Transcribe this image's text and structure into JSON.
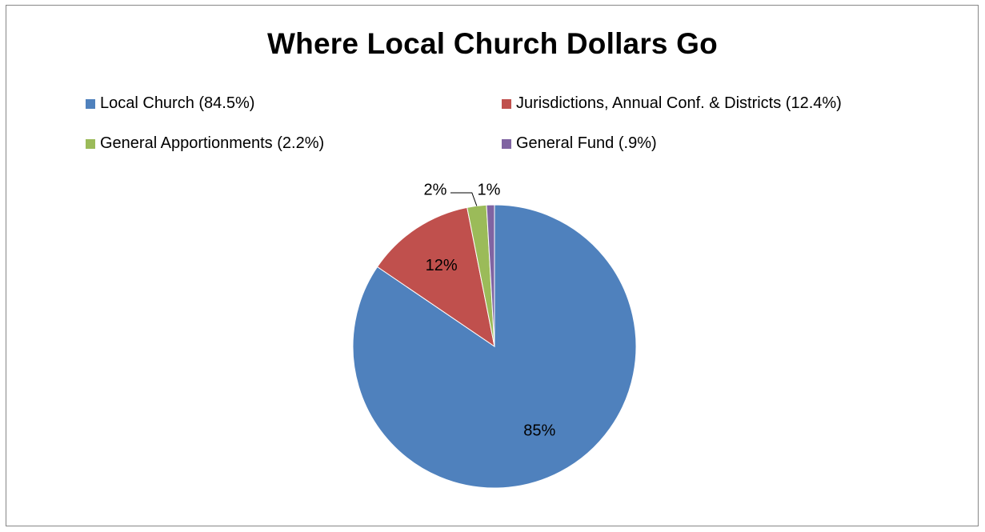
{
  "chart_data": {
    "type": "pie",
    "title": "Where Local Church Dollars Go",
    "categories": [
      "Local Church (84.5%)",
      "Jurisdictions, Annual Conf. & Districts (12.4%)",
      "General Apportionments (2.2%)",
      "General Fund (.9%)"
    ],
    "values": [
      84.5,
      12.4,
      2.2,
      0.9
    ],
    "data_labels": [
      "85%",
      "12%",
      "2%",
      "1%"
    ],
    "colors": [
      "#4f81bd",
      "#c0504d",
      "#9bbb59",
      "#8064a2"
    ],
    "legend_position": "top",
    "start_angle": "12 o'clock",
    "direction": "clockwise"
  }
}
